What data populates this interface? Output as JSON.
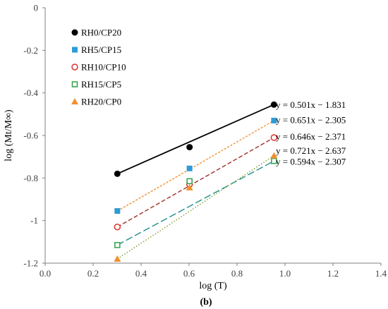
{
  "chart_data": {
    "type": "scatter",
    "xlabel": "log (T)",
    "ylabel": "log (Mt/M∞)",
    "xlim": [
      0.0,
      1.4
    ],
    "ylim": [
      -1.2,
      0.0
    ],
    "xticks": [
      0.0,
      0.2,
      0.4,
      0.6,
      0.8,
      1.0,
      1.2,
      1.4
    ],
    "yticks": [
      0,
      -0.2,
      -0.4,
      -0.6,
      -0.8,
      -1,
      -1.2
    ],
    "xtick_labels": [
      "0.0",
      "0.2",
      "0.4",
      "0.6",
      "0.8",
      "1.0",
      "1.2",
      "1.4"
    ],
    "ytick_labels": [
      "0",
      "-0.2",
      "-0.4",
      "-0.6",
      "-0.8",
      "-1",
      "-1.2"
    ],
    "grid": false,
    "legend_position": "top-left",
    "caption": "(b)",
    "series": [
      {
        "name": "RH0/CP20",
        "marker": "filled-circle",
        "color": "#000000",
        "line_style": "solid",
        "x": [
          0.301,
          0.602,
          0.954
        ],
        "y": [
          -0.78,
          -0.655,
          -0.455
        ],
        "equation": "y = 0.501x − 1.831",
        "fit": [
          0.501,
          -1.831
        ]
      },
      {
        "name": "RH5/CP15",
        "marker": "filled-square",
        "color": "#2e9bd6",
        "line_style": "dashed-fine",
        "line_color": "#f0902f",
        "x": [
          0.301,
          0.602,
          0.954
        ],
        "y": [
          -0.955,
          -0.755,
          -0.53
        ],
        "equation": "y = 0.651x − 2.305",
        "fit": [
          0.651,
          -2.305
        ]
      },
      {
        "name": "RH10/CP10",
        "marker": "open-circle",
        "color": "#e0302a",
        "line_style": "dashed",
        "line_color": "#a0302a",
        "x": [
          0.301,
          0.602,
          0.954
        ],
        "y": [
          -1.03,
          -0.83,
          -0.61
        ],
        "equation": "y = 0.646x − 2.371",
        "fit": [
          0.646,
          -2.371
        ]
      },
      {
        "name": "RH15/CP5",
        "marker": "open-square",
        "color": "#2ea04a",
        "line_style": "long-dashed",
        "line_color": "#1f8f8a",
        "x": [
          0.301,
          0.602,
          0.954
        ],
        "y": [
          -1.115,
          -0.815,
          -0.72
        ],
        "equation": "y = 0.721x − 2.637",
        "fit": [
          0.721,
          -2.637
        ]
      },
      {
        "name": "RH20/CP0",
        "marker": "filled-triangle",
        "color": "#f0902f",
        "line_style": "dotted",
        "line_color": "#7aa02a",
        "x": [
          0.301,
          0.602,
          0.954
        ],
        "y": [
          -1.18,
          -0.845,
          -0.695
        ],
        "equation": "y = 0.594x − 2.307",
        "fit": [
          0.594,
          -2.307
        ]
      }
    ]
  }
}
